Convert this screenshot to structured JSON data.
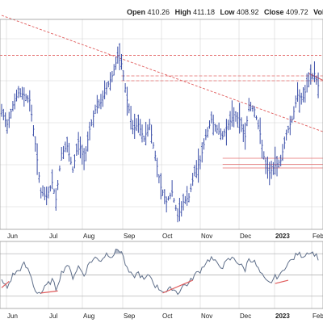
{
  "header": {
    "open_label": "Open",
    "open_value": "410.26",
    "high_label": "High",
    "high_value": "411.18",
    "low_label": "Low",
    "low_value": "408.92",
    "close_label": "Close",
    "close_value": "409.72",
    "volume_label": "Volume"
  },
  "chart_data": [
    {
      "type": "ohlc",
      "categories": [
        "Jun",
        "Jul",
        "Aug",
        "Sep",
        "Oct",
        "Nov",
        "Dec",
        "2023",
        "Feb"
      ],
      "x_unit": "trading day index (0 = first bar, late May 2022)",
      "close_path": [
        [
          0,
          405
        ],
        [
          3,
          400
        ],
        [
          6,
          408
        ],
        [
          9,
          413
        ],
        [
          12,
          412
        ],
        [
          15,
          410
        ],
        [
          18,
          392
        ],
        [
          21,
          372
        ],
        [
          24,
          370
        ],
        [
          27,
          376
        ],
        [
          29,
          369
        ],
        [
          32,
          388
        ],
        [
          35,
          391
        ],
        [
          38,
          381
        ],
        [
          41,
          393
        ],
        [
          44,
          385
        ],
        [
          47,
          398
        ],
        [
          50,
          406
        ],
        [
          53,
          409
        ],
        [
          56,
          415
        ],
        [
          59,
          420
        ],
        [
          62,
          428
        ],
        [
          64,
          425
        ],
        [
          67,
          410
        ],
        [
          70,
          398
        ],
        [
          73,
          400
        ],
        [
          76,
          394
        ],
        [
          79,
          400
        ],
        [
          82,
          387
        ],
        [
          85,
          374
        ],
        [
          88,
          368
        ],
        [
          91,
          372
        ],
        [
          94,
          362
        ],
        [
          97,
          368
        ],
        [
          100,
          370
        ],
        [
          103,
          380
        ],
        [
          106,
          385
        ],
        [
          109,
          395
        ],
        [
          112,
          402
        ],
        [
          115,
          398
        ],
        [
          118,
          395
        ],
        [
          121,
          400
        ],
        [
          124,
          404
        ],
        [
          127,
          402
        ],
        [
          130,
          395
        ],
        [
          132,
          408
        ],
        [
          135,
          406
        ],
        [
          138,
          396
        ],
        [
          141,
          382
        ],
        [
          143,
          380
        ],
        [
          146,
          383
        ],
        [
          149,
          385
        ],
        [
          152,
          396
        ],
        [
          155,
          402
        ],
        [
          158,
          412
        ],
        [
          161,
          411
        ],
        [
          164,
          418
        ],
        [
          167,
          421
        ],
        [
          169,
          416
        ]
      ],
      "price_range_hidden": [
        358,
        442
      ],
      "trendlines": [
        {
          "kind": "dashed",
          "from": [
            0,
            445
          ],
          "to": [
            175,
            396
          ]
        },
        {
          "kind": "dashed-horizontal",
          "y": 428.5
        },
        {
          "kind": "dashed-horizontal",
          "y": 420
        },
        {
          "kind": "dashed-horizontal",
          "y": 418
        },
        {
          "kind": "solid-horizontal",
          "y": 386
        },
        {
          "kind": "solid-horizontal",
          "y": 383.5
        },
        {
          "kind": "solid-horizontal",
          "y": 382
        },
        {
          "kind": "solid",
          "from": [
            164,
            421
          ],
          "to": [
            172,
            418
          ]
        }
      ],
      "grid": true,
      "legend": "none"
    },
    {
      "type": "line",
      "categories": [
        "Jun",
        "Jul",
        "Aug",
        "Sep",
        "Oct",
        "Nov",
        "Dec",
        "2023",
        "Feb"
      ],
      "indicator_path": [
        [
          0,
          44
        ],
        [
          3,
          38
        ],
        [
          6,
          50
        ],
        [
          9,
          54
        ],
        [
          12,
          60
        ],
        [
          15,
          52
        ],
        [
          18,
          35
        ],
        [
          21,
          33
        ],
        [
          24,
          40
        ],
        [
          27,
          45
        ],
        [
          29,
          37
        ],
        [
          32,
          52
        ],
        [
          35,
          60
        ],
        [
          38,
          48
        ],
        [
          41,
          58
        ],
        [
          44,
          50
        ],
        [
          47,
          62
        ],
        [
          50,
          66
        ],
        [
          53,
          64
        ],
        [
          56,
          70
        ],
        [
          59,
          68
        ],
        [
          62,
          74
        ],
        [
          64,
          72
        ],
        [
          67,
          55
        ],
        [
          70,
          48
        ],
        [
          73,
          52
        ],
        [
          76,
          45
        ],
        [
          79,
          50
        ],
        [
          82,
          40
        ],
        [
          85,
          36
        ],
        [
          88,
          34
        ],
        [
          91,
          38
        ],
        [
          94,
          33
        ],
        [
          97,
          40
        ],
        [
          100,
          42
        ],
        [
          103,
          50
        ],
        [
          106,
          54
        ],
        [
          109,
          62
        ],
        [
          112,
          66
        ],
        [
          115,
          60
        ],
        [
          118,
          58
        ],
        [
          121,
          64
        ],
        [
          124,
          66
        ],
        [
          127,
          60
        ],
        [
          130,
          55
        ],
        [
          132,
          66
        ],
        [
          135,
          62
        ],
        [
          138,
          52
        ],
        [
          141,
          44
        ],
        [
          143,
          42
        ],
        [
          146,
          48
        ],
        [
          149,
          50
        ],
        [
          152,
          60
        ],
        [
          155,
          64
        ],
        [
          158,
          70
        ],
        [
          161,
          68
        ],
        [
          164,
          72
        ],
        [
          167,
          70
        ],
        [
          169,
          66
        ]
      ],
      "ylim": [
        20,
        80
      ],
      "reference_lines": [
        70,
        50,
        30
      ],
      "divergence_lines": [
        {
          "from": [
            0,
            38
          ],
          "to": [
            4,
            44
          ]
        },
        {
          "from": [
            21,
            33
          ],
          "to": [
            30,
            35
          ]
        },
        {
          "from": [
            86,
            33
          ],
          "to": [
            102,
            45
          ]
        },
        {
          "from": [
            146,
            42
          ],
          "to": [
            153,
            45
          ]
        }
      ],
      "grid": true,
      "legend": "none"
    }
  ],
  "colors": {
    "bars": "#3a4ea8",
    "indicator_line": "#5f6f8a",
    "indicator_fill": "#b5bccb",
    "trendline": "#e05a5a",
    "hline": "#e46b6b",
    "grid": "#d4d4d4",
    "border": "#999999"
  }
}
